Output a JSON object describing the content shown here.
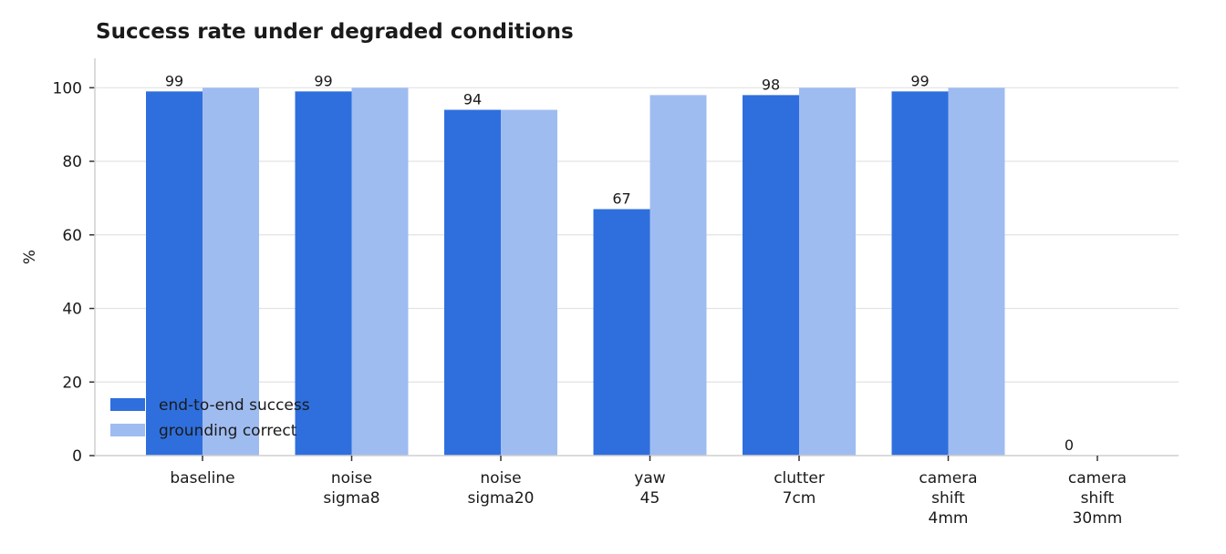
{
  "chart_data": {
    "type": "bar",
    "title": "Success rate under degraded conditions",
    "xlabel": "",
    "ylabel": "%",
    "ylim": [
      0,
      108
    ],
    "yticks": [
      0,
      20,
      40,
      60,
      80,
      100
    ],
    "grid": true,
    "legend_position": "bottom-left",
    "categories": [
      [
        "baseline"
      ],
      [
        "noise",
        "sigma8"
      ],
      [
        "noise",
        "sigma20"
      ],
      [
        "yaw",
        "45"
      ],
      [
        "clutter",
        "7cm"
      ],
      [
        "camera",
        "shift",
        "4mm"
      ],
      [
        "camera",
        "shift",
        "30mm"
      ]
    ],
    "series": [
      {
        "name": "end-to-end success",
        "color": "#2f6fdd",
        "values": [
          99,
          99,
          94,
          67,
          98,
          99,
          0
        ],
        "show_labels": true
      },
      {
        "name": "grounding correct",
        "color": "#9fbcf1",
        "values": [
          100,
          100,
          94,
          98,
          100,
          100,
          0
        ],
        "show_labels": false
      }
    ]
  }
}
